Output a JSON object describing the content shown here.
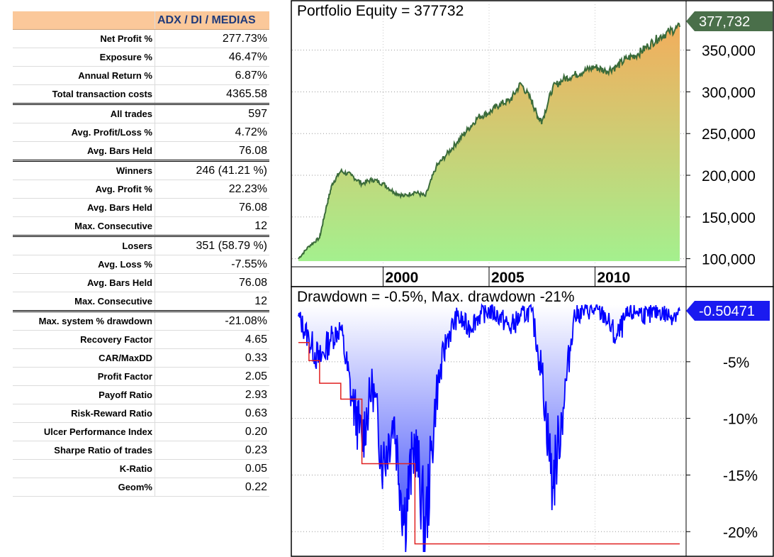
{
  "stats": {
    "header": "ADX / DI / MEDIAS",
    "rows": [
      {
        "label": "Net Profit %",
        "value": "277.73%"
      },
      {
        "label": "Exposure %",
        "value": "46.47%"
      },
      {
        "label": "Annual Return %",
        "value": "6.87%"
      },
      {
        "label": "Total transaction costs",
        "value": "4365.58"
      },
      {
        "label": "All trades",
        "value": "597",
        "sep": true
      },
      {
        "label": "Avg. Profit/Loss %",
        "value": "4.72%"
      },
      {
        "label": "Avg. Bars Held",
        "value": "76.08"
      },
      {
        "label": "Winners",
        "value": "246 (41.21 %)",
        "sep": true
      },
      {
        "label": "Avg. Profit %",
        "value": "22.23%"
      },
      {
        "label": "Avg. Bars Held",
        "value": "76.08"
      },
      {
        "label": "Max. Consecutive",
        "value": "12"
      },
      {
        "label": "Losers",
        "value": "351 (58.79 %)",
        "sep": true
      },
      {
        "label": "Avg. Loss %",
        "value": "-7.55%"
      },
      {
        "label": "Avg. Bars Held",
        "value": "76.08"
      },
      {
        "label": "Max. Consecutive",
        "value": "12"
      },
      {
        "label": "Max. system % drawdown",
        "value": "-21.08%",
        "sep": true
      },
      {
        "label": "Recovery Factor",
        "value": "4.65"
      },
      {
        "label": "CAR/MaxDD",
        "value": "0.33"
      },
      {
        "label": "Profit Factor",
        "value": "2.05"
      },
      {
        "label": "Payoff Ratio",
        "value": "2.93"
      },
      {
        "label": "Risk-Reward Ratio",
        "value": "0.63"
      },
      {
        "label": "Ulcer Performance Index",
        "value": "0.20"
      },
      {
        "label": "Sharpe Ratio of trades",
        "value": "0.23"
      },
      {
        "label": "K-Ratio",
        "value": "0.05"
      },
      {
        "label": "Geom%",
        "value": "0.22"
      }
    ]
  },
  "chart_data": [
    {
      "type": "area",
      "title": "Portfolio Equity = 377732",
      "last_value_label": "377,732",
      "colors": {
        "line": "#3a6b3a",
        "fill_top": "#f3ad5c",
        "fill_bottom": "#a4f08e",
        "tag": "#4a6f4a"
      },
      "xlim": [
        1995.7,
        2014.3
      ],
      "ylim": [
        92000,
        405000
      ],
      "x_ticks": [
        2000,
        2005,
        2010
      ],
      "y_ticks": [
        {
          "value": 100000,
          "label": "100,000"
        },
        {
          "value": 150000,
          "label": "150,000"
        },
        {
          "value": 200000,
          "label": "200,000"
        },
        {
          "value": 250000,
          "label": "250,000"
        },
        {
          "value": 300000,
          "label": "300,000"
        },
        {
          "value": 350000,
          "label": "350,000"
        }
      ],
      "x": [
        1996.0,
        1996.5,
        1997.0,
        1997.3,
        1997.6,
        1998.0,
        1998.5,
        1999.0,
        1999.5,
        2000.0,
        2000.5,
        2001.0,
        2001.5,
        2002.0,
        2002.5,
        2003.0,
        2003.5,
        2004.0,
        2004.5,
        2005.0,
        2005.5,
        2006.0,
        2006.5,
        2007.0,
        2007.3,
        2007.5,
        2008.0,
        2008.5,
        2009.0,
        2009.5,
        2010.0,
        2010.5,
        2011.0,
        2011.5,
        2012.0,
        2012.5,
        2013.0,
        2013.5,
        2014.0
      ],
      "values": [
        100000,
        115000,
        125000,
        160000,
        190000,
        205000,
        200000,
        190000,
        195000,
        190000,
        180000,
        175000,
        180000,
        175000,
        210000,
        225000,
        240000,
        255000,
        270000,
        275000,
        285000,
        290000,
        310000,
        290000,
        270000,
        265000,
        305000,
        315000,
        320000,
        325000,
        330000,
        325000,
        330000,
        340000,
        345000,
        355000,
        365000,
        372000,
        377732
      ]
    },
    {
      "type": "area",
      "title": "Drawdown = -0.5%, Max. drawdown -21%",
      "last_value_label": "-0.50471",
      "colors": {
        "line": "#0000ff",
        "fill_top": "#ffffff",
        "fill_bottom": "#2e3dfa",
        "max_line": "#e02020",
        "tag": "#1a1af0"
      },
      "xlim": [
        1995.7,
        2014.3
      ],
      "ylim": [
        -21.8,
        0
      ],
      "y_ticks": [
        {
          "value": -5,
          "label": "-5%"
        },
        {
          "value": -10,
          "label": "-10%"
        },
        {
          "value": -15,
          "label": "-15%"
        },
        {
          "value": -20,
          "label": "-20%"
        }
      ],
      "x": [
        1996.0,
        1996.5,
        1997.0,
        1997.5,
        1998.0,
        1998.5,
        1999.0,
        1999.5,
        2000.0,
        2000.5,
        2001.0,
        2001.5,
        2002.0,
        2002.5,
        2003.0,
        2003.5,
        2004.0,
        2004.5,
        2005.0,
        2005.5,
        2006.0,
        2006.5,
        2007.0,
        2007.5,
        2008.0,
        2008.5,
        2009.0,
        2009.5,
        2010.0,
        2010.5,
        2011.0,
        2011.5,
        2012.0,
        2012.5,
        2013.0,
        2013.5,
        2014.0
      ],
      "values": [
        -1,
        -3,
        -5,
        -3,
        -2,
        -8,
        -12,
        -7,
        -14,
        -10,
        -19,
        -12,
        -20,
        -8,
        -3,
        -1,
        -2,
        -1,
        -0.5,
        -1,
        -2,
        -1,
        -0.5,
        -6,
        -16,
        -9,
        -1,
        -0.5,
        -0.5,
        -1,
        -3,
        -1,
        -0.5,
        -1,
        -0.5,
        -1,
        -0.5
      ],
      "max_drawdown_steps": [
        {
          "x": 1996.0,
          "y": -3.3
        },
        {
          "x": 1996.5,
          "y": -4.9
        },
        {
          "x": 1997.0,
          "y": -6.9
        },
        {
          "x": 1998.0,
          "y": -8.3
        },
        {
          "x": 1999.0,
          "y": -14.0
        },
        {
          "x": 2001.5,
          "y": -21.08
        },
        {
          "x": 2014.0,
          "y": -21.08
        }
      ]
    }
  ]
}
